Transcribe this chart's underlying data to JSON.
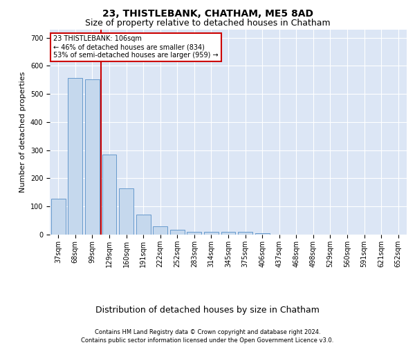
{
  "title": "23, THISTLEBANK, CHATHAM, ME5 8AD",
  "subtitle": "Size of property relative to detached houses in Chatham",
  "xlabel": "Distribution of detached houses by size in Chatham",
  "ylabel": "Number of detached properties",
  "categories": [
    "37sqm",
    "68sqm",
    "99sqm",
    "129sqm",
    "160sqm",
    "191sqm",
    "222sqm",
    "252sqm",
    "283sqm",
    "314sqm",
    "345sqm",
    "375sqm",
    "406sqm",
    "437sqm",
    "468sqm",
    "498sqm",
    "529sqm",
    "560sqm",
    "591sqm",
    "621sqm",
    "652sqm"
  ],
  "values": [
    127,
    556,
    551,
    284,
    165,
    70,
    29,
    18,
    10,
    10,
    10,
    10,
    5,
    0,
    0,
    0,
    0,
    0,
    0,
    0,
    0
  ],
  "bar_color": "#c5d8ed",
  "bar_edge_color": "#6699cc",
  "vline_x_idx": 2,
  "vline_color": "#cc0000",
  "annotation_text": "23 THISTLEBANK: 106sqm\n← 46% of detached houses are smaller (834)\n53% of semi-detached houses are larger (959) →",
  "annotation_box_color": "#ffffff",
  "annotation_box_edge_color": "#cc0000",
  "ylim": [
    0,
    730
  ],
  "yticks": [
    0,
    100,
    200,
    300,
    400,
    500,
    600,
    700
  ],
  "bg_color": "#dce6f5",
  "grid_color": "#ffffff",
  "footer_line1": "Contains HM Land Registry data © Crown copyright and database right 2024.",
  "footer_line2": "Contains public sector information licensed under the Open Government Licence v3.0.",
  "title_fontsize": 10,
  "subtitle_fontsize": 9,
  "xlabel_fontsize": 9,
  "ylabel_fontsize": 8,
  "tick_fontsize": 7,
  "footer_fontsize": 6,
  "annotation_fontsize": 7
}
